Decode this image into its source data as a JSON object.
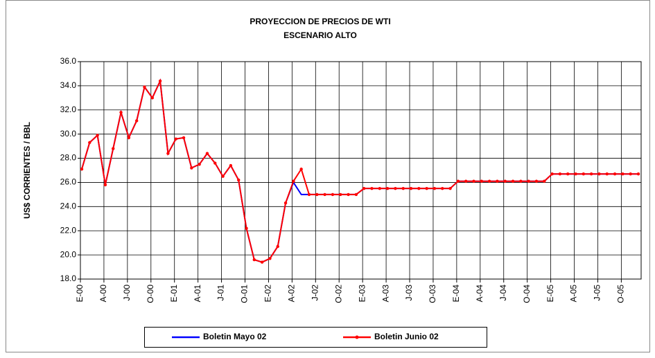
{
  "chart_data": {
    "type": "line",
    "title": "PROYECCION DE PRECIOS DE WTI",
    "subtitle": "ESCENARIO ALTO",
    "y_label": "US$ CORRIENTES / BBL",
    "categories": [
      "E-00",
      null,
      null,
      "A-00",
      null,
      null,
      "J-00",
      null,
      null,
      "O-00",
      null,
      null,
      "E-01",
      null,
      null,
      "A-01",
      null,
      null,
      "J-01",
      null,
      null,
      "O-01",
      null,
      null,
      "E-02",
      null,
      null,
      "A-02",
      null,
      null,
      "J-02",
      null,
      null,
      "O-02",
      null,
      null,
      "E-03",
      null,
      null,
      "A-03",
      null,
      null,
      "J-03",
      null,
      null,
      "O-03",
      null,
      null,
      "E-04",
      null,
      null,
      "A-04",
      null,
      null,
      "J-04",
      null,
      null,
      "O-04",
      null,
      null,
      "E-05",
      null,
      null,
      "A-05",
      null,
      null,
      "J-05",
      null,
      null,
      "O-05",
      null,
      null
    ],
    "series": [
      {
        "name": "Boletin Mayo 02",
        "color": "#0000ff",
        "markers": false,
        "values": [
          27.1,
          29.3,
          29.9,
          25.8,
          28.8,
          31.8,
          29.7,
          31.1,
          33.9,
          33.0,
          34.4,
          28.4,
          29.6,
          29.7,
          27.2,
          27.5,
          28.4,
          27.6,
          26.5,
          27.4,
          26.2,
          22.2,
          19.6,
          19.4,
          19.7,
          20.7,
          24.3,
          26.0,
          25.0,
          25.0,
          25.0,
          25.0,
          25.0,
          25.0,
          25.0,
          25.0,
          25.5,
          25.5,
          25.5,
          25.5,
          25.5,
          25.5,
          25.5,
          25.5,
          25.5,
          25.5,
          25.5,
          25.5,
          26.1,
          26.1,
          26.1,
          26.1,
          26.1,
          26.1,
          26.1,
          26.1,
          26.1,
          26.1,
          26.1,
          26.1,
          26.7,
          26.7,
          26.7,
          26.7,
          26.7,
          26.7,
          26.7,
          26.7,
          26.7,
          26.7,
          26.7,
          26.7
        ]
      },
      {
        "name": "Boletin Junio 02",
        "color": "#ff0000",
        "markers": true,
        "values": [
          27.1,
          29.3,
          29.9,
          25.8,
          28.8,
          31.8,
          29.7,
          31.1,
          33.9,
          33.0,
          34.4,
          28.4,
          29.6,
          29.7,
          27.2,
          27.5,
          28.4,
          27.6,
          26.5,
          27.4,
          26.2,
          22.2,
          19.6,
          19.4,
          19.7,
          20.7,
          24.3,
          26.1,
          27.1,
          25.0,
          25.0,
          25.0,
          25.0,
          25.0,
          25.0,
          25.0,
          25.5,
          25.5,
          25.5,
          25.5,
          25.5,
          25.5,
          25.5,
          25.5,
          25.5,
          25.5,
          25.5,
          25.5,
          26.1,
          26.1,
          26.1,
          26.1,
          26.1,
          26.1,
          26.1,
          26.1,
          26.1,
          26.1,
          26.1,
          26.1,
          26.7,
          26.7,
          26.7,
          26.7,
          26.7,
          26.7,
          26.7,
          26.7,
          26.7,
          26.7,
          26.7,
          26.7
        ]
      }
    ],
    "ylim": [
      18,
      36
    ],
    "yticks": [
      {
        "value": 18,
        "label": "18.0"
      },
      {
        "value": 20,
        "label": "20.0"
      },
      {
        "value": 22,
        "label": "22.0"
      },
      {
        "value": 24,
        "label": "24.0"
      },
      {
        "value": 26,
        "label": "26.0"
      },
      {
        "value": 28,
        "label": "28.0"
      },
      {
        "value": 30,
        "label": "30.0"
      },
      {
        "value": 32,
        "label": "32.0"
      },
      {
        "value": 34,
        "label": "34.0"
      },
      {
        "value": 36,
        "label": "36.0"
      }
    ],
    "grid": true,
    "legend": "bottom"
  }
}
